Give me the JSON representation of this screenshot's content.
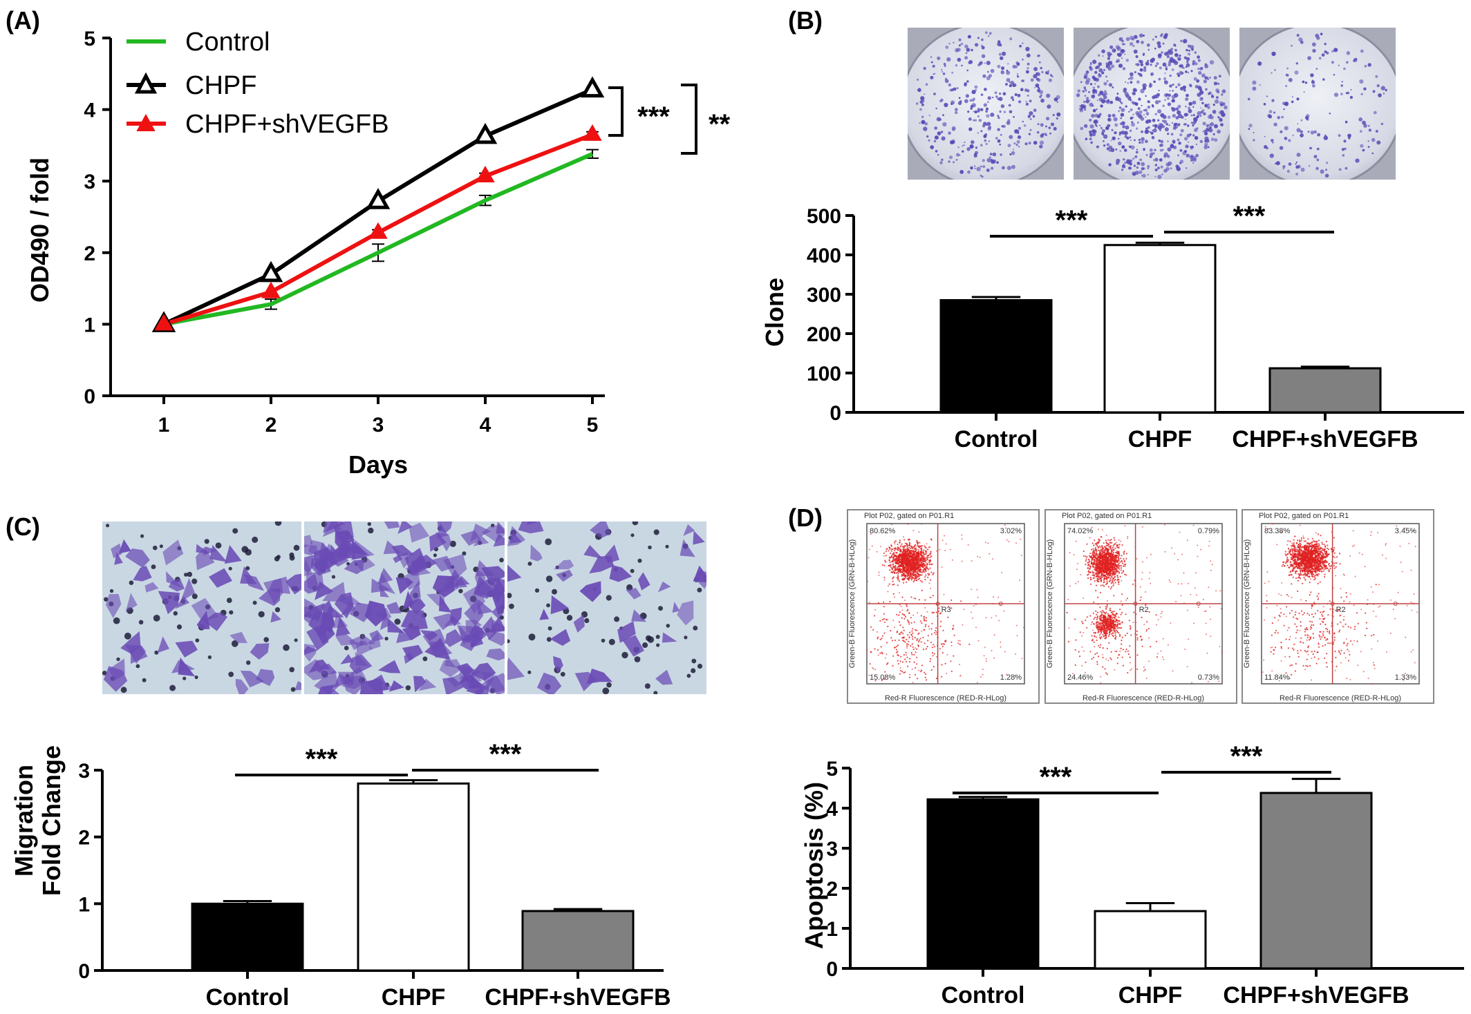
{
  "panels": {
    "a": {
      "letter": "(A)"
    },
    "b": {
      "letter": "(B)"
    },
    "c": {
      "letter": "(C)"
    },
    "d": {
      "letter": "(D)"
    }
  },
  "colors": {
    "control_line": "#22b822",
    "chpf_line": "#000000",
    "shvegfb_line": "#ee1111",
    "bar_control": "#000000",
    "bar_chpf": "#ffffff",
    "bar_shvegfb": "#808080",
    "stain": "#5b4fb8",
    "flow_dots": "#e02020"
  },
  "chart_data": [
    {
      "id": "A",
      "type": "line",
      "xlabel": "Days",
      "ylabel": "OD490 / fold",
      "x": [
        1,
        2,
        3,
        4,
        5
      ],
      "x_ticks": [
        "1",
        "2",
        "3",
        "4",
        "5"
      ],
      "y_ticks": [
        "0",
        "1",
        "2",
        "3",
        "4",
        "5"
      ],
      "ylim": [
        0,
        5
      ],
      "legend_position": "top-left",
      "series": [
        {
          "name": "Control",
          "values": [
            1.0,
            1.28,
            2.0,
            2.73,
            3.38
          ],
          "errors": [
            0.02,
            0.07,
            0.12,
            0.07,
            0.06
          ],
          "marker": "none"
        },
        {
          "name": "CHPF",
          "values": [
            1.0,
            1.7,
            2.72,
            3.63,
            4.28
          ],
          "errors": [
            0.02,
            0.03,
            0.03,
            0.03,
            0.03
          ],
          "marker": "open-triangle"
        },
        {
          "name": "CHPF+shVEGFB",
          "values": [
            1.0,
            1.45,
            2.28,
            3.07,
            3.65
          ],
          "errors": [
            0.02,
            0.03,
            0.04,
            0.04,
            0.04
          ],
          "marker": "filled-triangle"
        }
      ],
      "annotations": [
        {
          "text": "***",
          "between": [
            "CHPF",
            "CHPF+shVEGFB"
          ]
        },
        {
          "text": "**",
          "between": [
            "CHPF",
            "Control"
          ]
        }
      ]
    },
    {
      "id": "B",
      "type": "bar",
      "ylabel": "Clone",
      "categories": [
        "Control",
        "CHPF",
        "CHPF+shVEGFB"
      ],
      "values": [
        285,
        425,
        112
      ],
      "errors": [
        8,
        6,
        4
      ],
      "ylim": [
        0,
        500
      ],
      "y_ticks": [
        "0",
        "100",
        "200",
        "300",
        "400",
        "500"
      ],
      "annotations": [
        {
          "text": "***",
          "between": [
            "Control",
            "CHPF"
          ]
        },
        {
          "text": "***",
          "between": [
            "CHPF",
            "CHPF+shVEGFB"
          ]
        }
      ]
    },
    {
      "id": "C",
      "type": "bar",
      "ylabel": [
        "Migration",
        "Fold Change"
      ],
      "categories": [
        "Control",
        "CHPF",
        "CHPF+shVEGFB"
      ],
      "values": [
        1.0,
        2.8,
        0.89
      ],
      "errors": [
        0.04,
        0.05,
        0.03
      ],
      "ylim": [
        0,
        3
      ],
      "y_ticks": [
        "0",
        "1",
        "2",
        "3"
      ],
      "annotations": [
        {
          "text": "***",
          "between": [
            "Control",
            "CHPF"
          ]
        },
        {
          "text": "***",
          "between": [
            "CHPF",
            "CHPF+shVEGFB"
          ]
        }
      ]
    },
    {
      "id": "D",
      "type": "bar",
      "ylabel": "Apoptosis (%)",
      "categories": [
        "Control",
        "CHPF",
        "CHPF+shVEGFB"
      ],
      "values": [
        4.22,
        1.43,
        4.38
      ],
      "errors": [
        0.06,
        0.2,
        0.35
      ],
      "ylim": [
        0,
        5
      ],
      "y_ticks": [
        "0",
        "1",
        "2",
        "3",
        "4",
        "5"
      ],
      "annotations": [
        {
          "text": "***",
          "between": [
            "Control",
            "CHPF"
          ]
        },
        {
          "text": "***",
          "between": [
            "CHPF",
            "CHPF+shVEGFB"
          ]
        }
      ]
    }
  ],
  "flow_plots": [
    {
      "header": "Plot P02, gated on P01.R1",
      "ul": "80.62%",
      "ur": "3.02%",
      "ll": "15.08%",
      "lr": "1.28%",
      "y_label": "Green-B Fluorescence (GRN-B-HLog)",
      "x_label": "Red-R Fluorescence (RED-R-HLog)",
      "region": "R3"
    },
    {
      "header": "Plot P02, gated on P01.R1",
      "ul": "74.02%",
      "ur": "0.79%",
      "ll": "24.46%",
      "lr": "0.73%",
      "y_label": "Green-B Fluorescence (GRN-B-HLog)",
      "x_label": "Red-R Fluorescence (RED-R-HLog)",
      "region": "R2"
    },
    {
      "header": "Plot P02, gated on P01.R1",
      "ul": "83.38%",
      "ur": "3.45%",
      "ll": "11.84%",
      "lr": "1.33%",
      "y_label": "Green-B Fluorescence (GRN-B-HLog)",
      "x_label": "Red-R Fluorescence (RED-R-HLog)",
      "region": "R2"
    }
  ]
}
